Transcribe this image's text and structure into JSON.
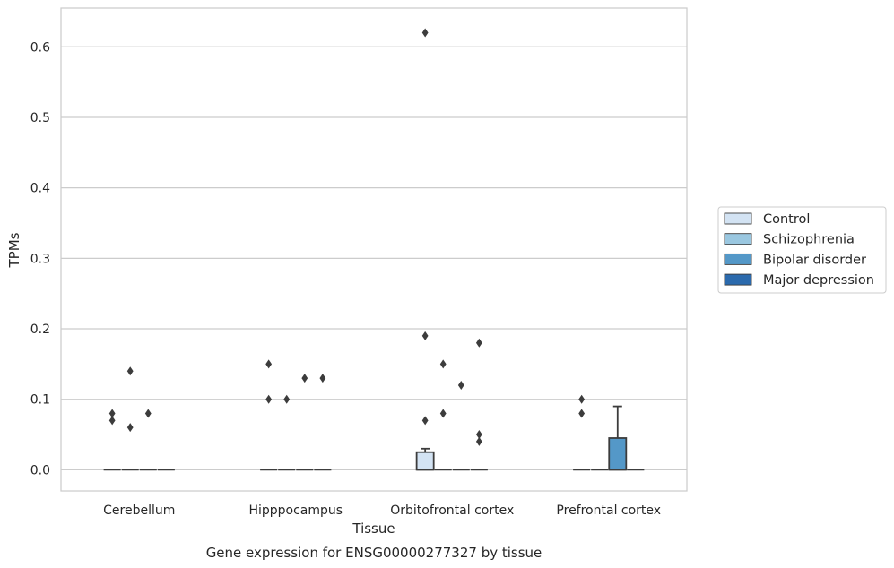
{
  "chart_data": {
    "type": "box",
    "title": "Gene expression for ENSG00000277327 by tissue",
    "xlabel": "Tissue",
    "ylabel": "TPMs",
    "ylim": [
      -0.03,
      0.655
    ],
    "yticks": [
      "0.0",
      "0.1",
      "0.2",
      "0.3",
      "0.4",
      "0.5",
      "0.6"
    ],
    "grid": "horizontal",
    "legend_position": "right",
    "categories": [
      "Cerebellum",
      "Hipppocampus",
      "Orbitofrontal cortex",
      "Prefrontal cortex"
    ],
    "series": [
      {
        "name": "Control",
        "color": "#d3e3f3"
      },
      {
        "name": "Schizophrenia",
        "color": "#9ac7e0"
      },
      {
        "name": "Bipolar disorder",
        "color": "#5498c8"
      },
      {
        "name": "Major depression",
        "color": "#2b6aad"
      }
    ],
    "boxes": [
      {
        "category": 0,
        "series": 0,
        "q1": 0,
        "median": 0,
        "q3": 0,
        "whisker_low": 0,
        "whisker_high": 0,
        "outliers": [
          0.07,
          0.08
        ]
      },
      {
        "category": 0,
        "series": 1,
        "q1": 0,
        "median": 0,
        "q3": 0,
        "whisker_low": 0,
        "whisker_high": 0,
        "outliers": [
          0.14,
          0.06
        ]
      },
      {
        "category": 0,
        "series": 2,
        "q1": 0,
        "median": 0,
        "q3": 0,
        "whisker_low": 0,
        "whisker_high": 0,
        "outliers": [
          0.08
        ]
      },
      {
        "category": 0,
        "series": 3,
        "q1": 0,
        "median": 0,
        "q3": 0,
        "whisker_low": 0,
        "whisker_high": 0,
        "outliers": []
      },
      {
        "category": 1,
        "series": 0,
        "q1": 0,
        "median": 0,
        "q3": 0,
        "whisker_low": 0,
        "whisker_high": 0,
        "outliers": [
          0.15,
          0.1
        ]
      },
      {
        "category": 1,
        "series": 1,
        "q1": 0,
        "median": 0,
        "q3": 0,
        "whisker_low": 0,
        "whisker_high": 0,
        "outliers": [
          0.1
        ]
      },
      {
        "category": 1,
        "series": 2,
        "q1": 0,
        "median": 0,
        "q3": 0,
        "whisker_low": 0,
        "whisker_high": 0,
        "outliers": [
          0.13
        ]
      },
      {
        "category": 1,
        "series": 3,
        "q1": 0,
        "median": 0,
        "q3": 0,
        "whisker_low": 0,
        "whisker_high": 0,
        "outliers": [
          0.13
        ]
      },
      {
        "category": 2,
        "series": 0,
        "q1": 0,
        "median": 0,
        "q3": 0.025,
        "whisker_low": 0,
        "whisker_high": 0.03,
        "outliers": [
          0.62,
          0.19,
          0.07
        ]
      },
      {
        "category": 2,
        "series": 1,
        "q1": 0,
        "median": 0,
        "q3": 0,
        "whisker_low": 0,
        "whisker_high": 0,
        "outliers": [
          0.15,
          0.08
        ]
      },
      {
        "category": 2,
        "series": 2,
        "q1": 0,
        "median": 0,
        "q3": 0,
        "whisker_low": 0,
        "whisker_high": 0,
        "outliers": [
          0.12
        ]
      },
      {
        "category": 2,
        "series": 3,
        "q1": 0,
        "median": 0,
        "q3": 0,
        "whisker_low": 0,
        "whisker_high": 0,
        "outliers": [
          0.18,
          0.05,
          0.04
        ]
      },
      {
        "category": 3,
        "series": 0,
        "q1": 0,
        "median": 0,
        "q3": 0,
        "whisker_low": 0,
        "whisker_high": 0,
        "outliers": [
          0.1,
          0.08
        ]
      },
      {
        "category": 3,
        "series": 1,
        "q1": 0,
        "median": 0,
        "q3": 0,
        "whisker_low": 0,
        "whisker_high": 0,
        "outliers": []
      },
      {
        "category": 3,
        "series": 2,
        "q1": 0,
        "median": 0,
        "q3": 0.045,
        "whisker_low": 0,
        "whisker_high": 0.09,
        "outliers": []
      },
      {
        "category": 3,
        "series": 3,
        "q1": 0,
        "median": 0,
        "q3": 0,
        "whisker_low": 0,
        "whisker_high": 0,
        "outliers": []
      }
    ]
  }
}
